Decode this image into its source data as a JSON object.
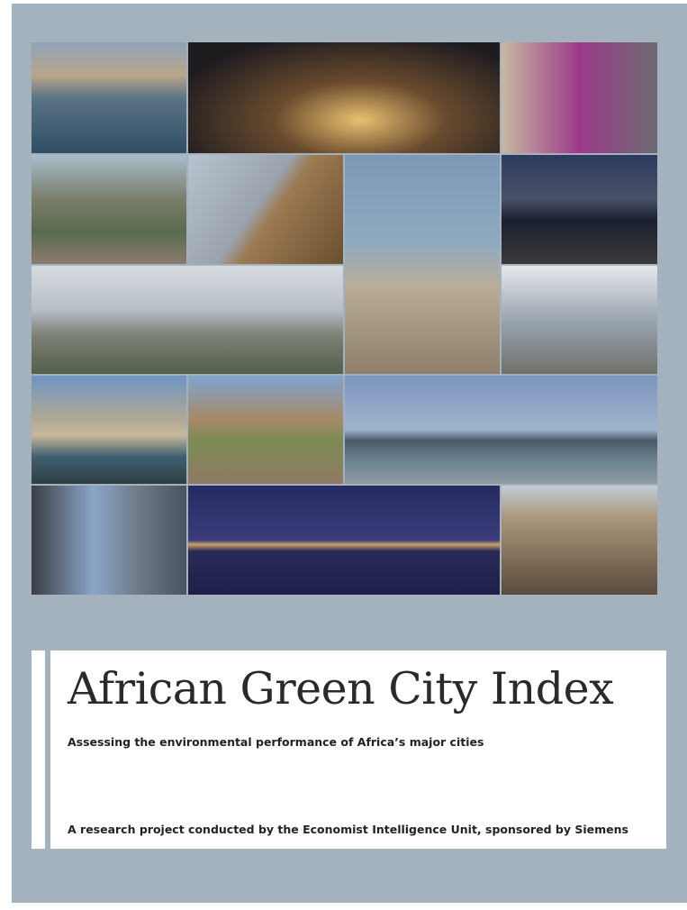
{
  "cover": {
    "title": "African Green City Index",
    "subtitle": "Assessing the environmental performance of Africa’s major cities",
    "credit": "A research project conducted by the Economist Intelligence Unit, sponsored by Siemens"
  }
}
